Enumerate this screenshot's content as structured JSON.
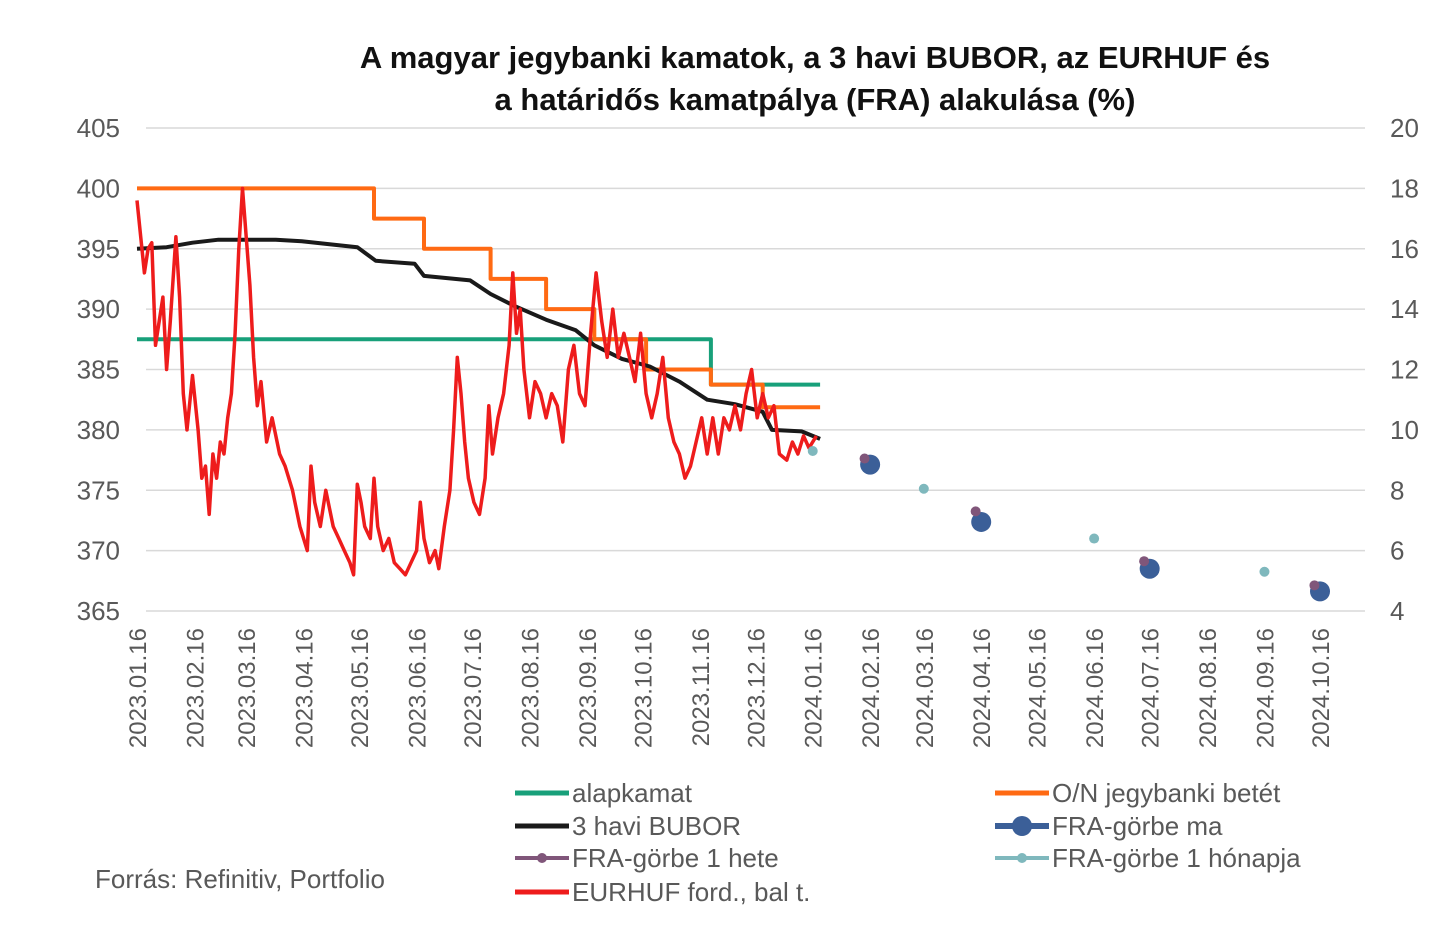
{
  "chart_data": {
    "type": "line",
    "title_line1": "A magyar jegybanki kamatok, a 3 havi BUBOR, az EURHUF és",
    "title_line2": "a határidős kamatpálya (FRA) alakulása (%)",
    "source": "Forrás: Refinitiv, Portfolio",
    "y_left": {
      "min": 365,
      "max": 405,
      "ticks": [
        "405",
        "400",
        "395",
        "390",
        "385",
        "380",
        "375",
        "370",
        "365"
      ]
    },
    "y_right": {
      "min": 4,
      "max": 20,
      "ticks": [
        "20",
        "18",
        "16",
        "14",
        "12",
        "10",
        "8",
        "6",
        "4"
      ]
    },
    "x_ticks": [
      "2023.01.16",
      "2023.02.16",
      "2023.03.16",
      "2023.04.16",
      "2023.05.16",
      "2023.06.16",
      "2023.07.16",
      "2023.08.16",
      "2023.09.16",
      "2023.10.16",
      "2023.11.16",
      "2023.12.16",
      "2024.01.16",
      "2024.02.16",
      "2024.03.16",
      "2024.04.16",
      "2024.05.16",
      "2024.06.16",
      "2024.07.16",
      "2024.08.16",
      "2024.09.16",
      "2024.10.16"
    ],
    "legend_position": "bottom",
    "grid": true,
    "series": [
      {
        "name": "alapkamat",
        "axis": "right",
        "color": "#18a07a",
        "step": true,
        "points": [
          [
            "2023-01-16",
            13.0
          ],
          [
            "2023-09-20",
            13.0
          ],
          [
            "2023-11-22",
            11.5
          ],
          [
            "2024-01-20",
            11.5
          ]
        ]
      },
      {
        "name": "O/N jegybanki betét",
        "axis": "right",
        "color": "#ff6a13",
        "step": true,
        "points": [
          [
            "2023-01-16",
            18.0
          ],
          [
            "2023-05-24",
            17.0
          ],
          [
            "2023-06-20",
            16.0
          ],
          [
            "2023-07-26",
            15.0
          ],
          [
            "2023-08-25",
            14.0
          ],
          [
            "2023-09-20",
            13.0
          ],
          [
            "2023-10-01",
            13.0
          ],
          [
            "2023-10-18",
            12.0
          ],
          [
            "2023-11-22",
            11.5
          ],
          [
            "2023-12-20",
            10.75
          ],
          [
            "2024-01-20",
            10.75
          ]
        ]
      },
      {
        "name": "3 havi BUBOR",
        "axis": "right",
        "color": "#1a1a1a",
        "points": [
          [
            "2023-01-16",
            16.0
          ],
          [
            "2023-02-01",
            16.05
          ],
          [
            "2023-02-15",
            16.2
          ],
          [
            "2023-03-01",
            16.3
          ],
          [
            "2023-04-01",
            16.3
          ],
          [
            "2023-04-15",
            16.25
          ],
          [
            "2023-05-15",
            16.05
          ],
          [
            "2023-05-25",
            15.6
          ],
          [
            "2023-06-15",
            15.5
          ],
          [
            "2023-06-20",
            15.1
          ],
          [
            "2023-07-15",
            14.95
          ],
          [
            "2023-07-26",
            14.5
          ],
          [
            "2023-08-08",
            14.1
          ],
          [
            "2023-08-25",
            13.65
          ],
          [
            "2023-09-10",
            13.3
          ],
          [
            "2023-09-20",
            12.8
          ],
          [
            "2023-10-05",
            12.35
          ],
          [
            "2023-10-20",
            12.1
          ],
          [
            "2023-11-05",
            11.6
          ],
          [
            "2023-11-20",
            11.0
          ],
          [
            "2023-12-05",
            10.85
          ],
          [
            "2023-12-20",
            10.6
          ],
          [
            "2023-12-25",
            10.0
          ],
          [
            "2024-01-10",
            9.95
          ],
          [
            "2024-01-20",
            9.7
          ]
        ]
      },
      {
        "name": "EURHUF ford., bal t.",
        "axis": "left",
        "color": "#ee1c1c",
        "points": [
          [
            "2023-01-16",
            399
          ],
          [
            "2023-01-18",
            396
          ],
          [
            "2023-01-20",
            393
          ],
          [
            "2023-01-22",
            395
          ],
          [
            "2023-01-24",
            395.5
          ],
          [
            "2023-01-26",
            387
          ],
          [
            "2023-01-28",
            389
          ],
          [
            "2023-01-30",
            391
          ],
          [
            "2023-02-01",
            385
          ],
          [
            "2023-02-03",
            389
          ],
          [
            "2023-02-06",
            396
          ],
          [
            "2023-02-08",
            391
          ],
          [
            "2023-02-10",
            383
          ],
          [
            "2023-02-12",
            380
          ],
          [
            "2023-02-15",
            384.5
          ],
          [
            "2023-02-18",
            380
          ],
          [
            "2023-02-20",
            376
          ],
          [
            "2023-02-22",
            377
          ],
          [
            "2023-02-24",
            373
          ],
          [
            "2023-02-26",
            378
          ],
          [
            "2023-02-28",
            376
          ],
          [
            "2023-03-02",
            379
          ],
          [
            "2023-03-04",
            378
          ],
          [
            "2023-03-06",
            381
          ],
          [
            "2023-03-08",
            383
          ],
          [
            "2023-03-10",
            388
          ],
          [
            "2023-03-12",
            395
          ],
          [
            "2023-03-14",
            400
          ],
          [
            "2023-03-16",
            396
          ],
          [
            "2023-03-18",
            392
          ],
          [
            "2023-03-20",
            386
          ],
          [
            "2023-03-22",
            382
          ],
          [
            "2023-03-24",
            384
          ],
          [
            "2023-03-27",
            379
          ],
          [
            "2023-03-30",
            381
          ],
          [
            "2023-04-03",
            378
          ],
          [
            "2023-04-06",
            377
          ],
          [
            "2023-04-10",
            375
          ],
          [
            "2023-04-14",
            372
          ],
          [
            "2023-04-18",
            370
          ],
          [
            "2023-04-20",
            377
          ],
          [
            "2023-04-22",
            374
          ],
          [
            "2023-04-25",
            372
          ],
          [
            "2023-04-28",
            375
          ],
          [
            "2023-05-02",
            372
          ],
          [
            "2023-05-05",
            371
          ],
          [
            "2023-05-08",
            370
          ],
          [
            "2023-05-11",
            369
          ],
          [
            "2023-05-13",
            368
          ],
          [
            "2023-05-15",
            375.5
          ],
          [
            "2023-05-17",
            374
          ],
          [
            "2023-05-19",
            372
          ],
          [
            "2023-05-22",
            371
          ],
          [
            "2023-05-24",
            376
          ],
          [
            "2023-05-26",
            372
          ],
          [
            "2023-05-29",
            370
          ],
          [
            "2023-06-01",
            371
          ],
          [
            "2023-06-04",
            369
          ],
          [
            "2023-06-07",
            368.5
          ],
          [
            "2023-06-10",
            368
          ],
          [
            "2023-06-13",
            369
          ],
          [
            "2023-06-16",
            370
          ],
          [
            "2023-06-18",
            374
          ],
          [
            "2023-06-20",
            371
          ],
          [
            "2023-06-23",
            369
          ],
          [
            "2023-06-26",
            370
          ],
          [
            "2023-06-28",
            368.5
          ],
          [
            "2023-07-01",
            372
          ],
          [
            "2023-07-04",
            375
          ],
          [
            "2023-07-06",
            380
          ],
          [
            "2023-07-08",
            386
          ],
          [
            "2023-07-10",
            383
          ],
          [
            "2023-07-12",
            379
          ],
          [
            "2023-07-14",
            376
          ],
          [
            "2023-07-17",
            374
          ],
          [
            "2023-07-20",
            373
          ],
          [
            "2023-07-23",
            376
          ],
          [
            "2023-07-25",
            382
          ],
          [
            "2023-07-27",
            378
          ],
          [
            "2023-07-30",
            381
          ],
          [
            "2023-08-02",
            383
          ],
          [
            "2023-08-05",
            387
          ],
          [
            "2023-08-07",
            393
          ],
          [
            "2023-08-09",
            388
          ],
          [
            "2023-08-11",
            390
          ],
          [
            "2023-08-13",
            385
          ],
          [
            "2023-08-16",
            381
          ],
          [
            "2023-08-19",
            384
          ],
          [
            "2023-08-22",
            383
          ],
          [
            "2023-08-25",
            381
          ],
          [
            "2023-08-28",
            383
          ],
          [
            "2023-08-31",
            382
          ],
          [
            "2023-09-03",
            379
          ],
          [
            "2023-09-06",
            385
          ],
          [
            "2023-09-09",
            387
          ],
          [
            "2023-09-12",
            383
          ],
          [
            "2023-09-15",
            382
          ],
          [
            "2023-09-18",
            388
          ],
          [
            "2023-09-21",
            393
          ],
          [
            "2023-09-24",
            389
          ],
          [
            "2023-09-27",
            386
          ],
          [
            "2023-09-30",
            390
          ],
          [
            "2023-10-03",
            386
          ],
          [
            "2023-10-06",
            388
          ],
          [
            "2023-10-09",
            386
          ],
          [
            "2023-10-12",
            384
          ],
          [
            "2023-10-15",
            388
          ],
          [
            "2023-10-18",
            383
          ],
          [
            "2023-10-21",
            381
          ],
          [
            "2023-10-24",
            383
          ],
          [
            "2023-10-27",
            386
          ],
          [
            "2023-10-30",
            381
          ],
          [
            "2023-11-02",
            379
          ],
          [
            "2023-11-05",
            378
          ],
          [
            "2023-11-08",
            376
          ],
          [
            "2023-11-11",
            377
          ],
          [
            "2023-11-14",
            379
          ],
          [
            "2023-11-17",
            381
          ],
          [
            "2023-11-20",
            378
          ],
          [
            "2023-11-23",
            381
          ],
          [
            "2023-11-26",
            378
          ],
          [
            "2023-11-29",
            381
          ],
          [
            "2023-12-02",
            380
          ],
          [
            "2023-12-05",
            382
          ],
          [
            "2023-12-08",
            380
          ],
          [
            "2023-12-11",
            383
          ],
          [
            "2023-12-14",
            385
          ],
          [
            "2023-12-17",
            381
          ],
          [
            "2023-12-20",
            383
          ],
          [
            "2023-12-23",
            381
          ],
          [
            "2023-12-26",
            382
          ],
          [
            "2023-12-29",
            378
          ],
          [
            "2024-01-02",
            377.5
          ],
          [
            "2024-01-05",
            379
          ],
          [
            "2024-01-08",
            378
          ],
          [
            "2024-01-11",
            379.5
          ],
          [
            "2024-01-14",
            378.5
          ],
          [
            "2024-01-18",
            379.5
          ]
        ]
      },
      {
        "name": "FRA-görbe ma",
        "axis": "right",
        "color": "#3b5f98",
        "marker_only": true,
        "marker_size": 10,
        "points": [
          [
            "2024-02-16",
            8.85
          ],
          [
            "2024-04-16",
            6.95
          ],
          [
            "2024-07-16",
            5.4
          ],
          [
            "2024-10-16",
            4.65
          ]
        ]
      },
      {
        "name": "FRA-görbe 1 hete",
        "axis": "right",
        "color": "#80567a",
        "marker_only": true,
        "marker_size": 5,
        "points": [
          [
            "2024-02-13",
            9.05
          ],
          [
            "2024-04-13",
            7.3
          ],
          [
            "2024-07-13",
            5.65
          ],
          [
            "2024-10-13",
            4.85
          ]
        ]
      },
      {
        "name": "FRA-görbe 1 hónapja",
        "axis": "right",
        "color": "#7fb8bd",
        "marker_only": true,
        "marker_size": 5,
        "points": [
          [
            "2024-01-16",
            9.3
          ],
          [
            "2024-03-16",
            8.05
          ],
          [
            "2024-06-16",
            6.4
          ],
          [
            "2024-09-16",
            5.3
          ]
        ]
      }
    ]
  }
}
